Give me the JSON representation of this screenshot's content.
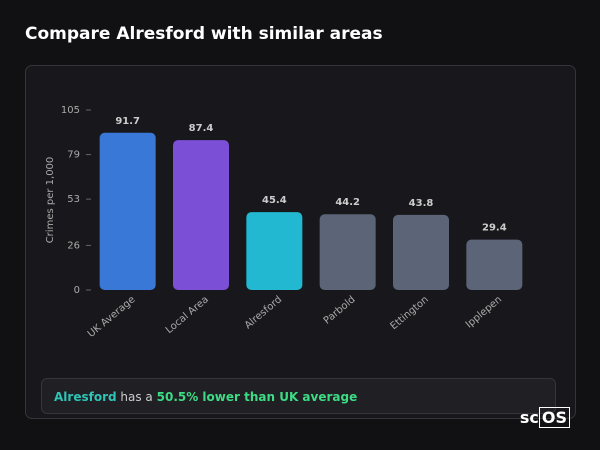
{
  "page_title": "Compare Alresford with similar areas",
  "chart_data": {
    "type": "bar",
    "y_axis_label": "Crimes per 1,000",
    "categories": [
      "UK Average",
      "Local Area",
      "Alresford",
      "Parbold",
      "Ettington",
      "Ipplepen"
    ],
    "values": [
      91.7,
      87.4,
      45.4,
      44.2,
      43.8,
      29.4
    ],
    "colors": [
      "#3a78d8",
      "#7b4fd6",
      "#22b8d1",
      "#5b6577",
      "#5b6577",
      "#5b6577"
    ],
    "ylim": [
      0,
      105
    ],
    "yticks": [
      0,
      26,
      53,
      79,
      105
    ],
    "grid": false
  },
  "summary": {
    "area": "Alresford",
    "connector": "has a",
    "highlight": "50.5% lower than UK average"
  },
  "logo": "sc",
  "logo_box": "OS"
}
